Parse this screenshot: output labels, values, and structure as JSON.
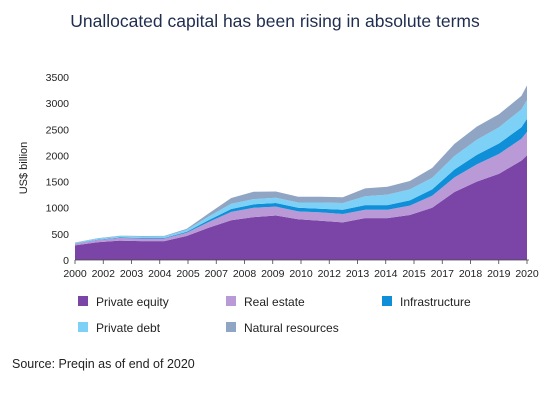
{
  "chart_data": {
    "type": "area",
    "stacked": true,
    "title": "Unallocated capital has been rising in absolute terms",
    "ylabel": "US$ billion",
    "ylim": [
      0,
      3500
    ],
    "yticks": [
      0,
      500,
      1000,
      1500,
      2000,
      2500,
      3000,
      3500
    ],
    "x_tick_labels": [
      "2000",
      "2002",
      "2003",
      "2004",
      "2005",
      "2007",
      "2008",
      "2009",
      "2010",
      "2012",
      "2013",
      "2014",
      "2015",
      "2017",
      "2018",
      "2019",
      "2020"
    ],
    "x": [
      2000.0,
      2001.0,
      2002.0,
      2003.0,
      2004.0,
      2005.0,
      2006.0,
      2007.0,
      2008.0,
      2009.0,
      2010.0,
      2011.0,
      2012.0,
      2013.0,
      2014.0,
      2015.0,
      2016.0,
      2017.0,
      2018.0,
      2019.0,
      2020.0,
      2020.25
    ],
    "series": [
      {
        "name": "Private equity",
        "color": "#7b45a8",
        "values": [
          280,
          340,
          370,
          360,
          360,
          460,
          620,
          760,
          820,
          850,
          780,
          750,
          720,
          800,
          800,
          860,
          1000,
          1300,
          1500,
          1650,
          1900,
          2000
        ]
      },
      {
        "name": "Real estate",
        "color": "#b99ad6",
        "values": [
          30,
          40,
          50,
          50,
          50,
          60,
          110,
          160,
          180,
          170,
          150,
          160,
          160,
          160,
          160,
          180,
          230,
          280,
          330,
          380,
          420,
          450
        ]
      },
      {
        "name": "Infrastructure",
        "color": "#0f8fd8",
        "values": [
          5,
          8,
          10,
          12,
          12,
          18,
          35,
          55,
          65,
          70,
          70,
          70,
          80,
          90,
          90,
          100,
          120,
          150,
          180,
          200,
          220,
          250
        ]
      },
      {
        "name": "Private debt",
        "color": "#7ed1f6",
        "values": [
          15,
          20,
          25,
          28,
          30,
          38,
          70,
          100,
          100,
          100,
          100,
          120,
          130,
          170,
          200,
          210,
          220,
          260,
          290,
          310,
          340,
          360
        ]
      },
      {
        "name": "Natural resources",
        "color": "#8fa5c3",
        "values": [
          5,
          8,
          10,
          10,
          10,
          20,
          60,
          110,
          140,
          120,
          110,
          110,
          110,
          150,
          150,
          160,
          190,
          230,
          250,
          250,
          260,
          280
        ]
      }
    ],
    "grid": false,
    "legend": "bottom"
  },
  "source_text": "Source: Preqin as of end of 2020",
  "colors": {
    "title": "#1f2d4f",
    "axis": "#444444"
  }
}
